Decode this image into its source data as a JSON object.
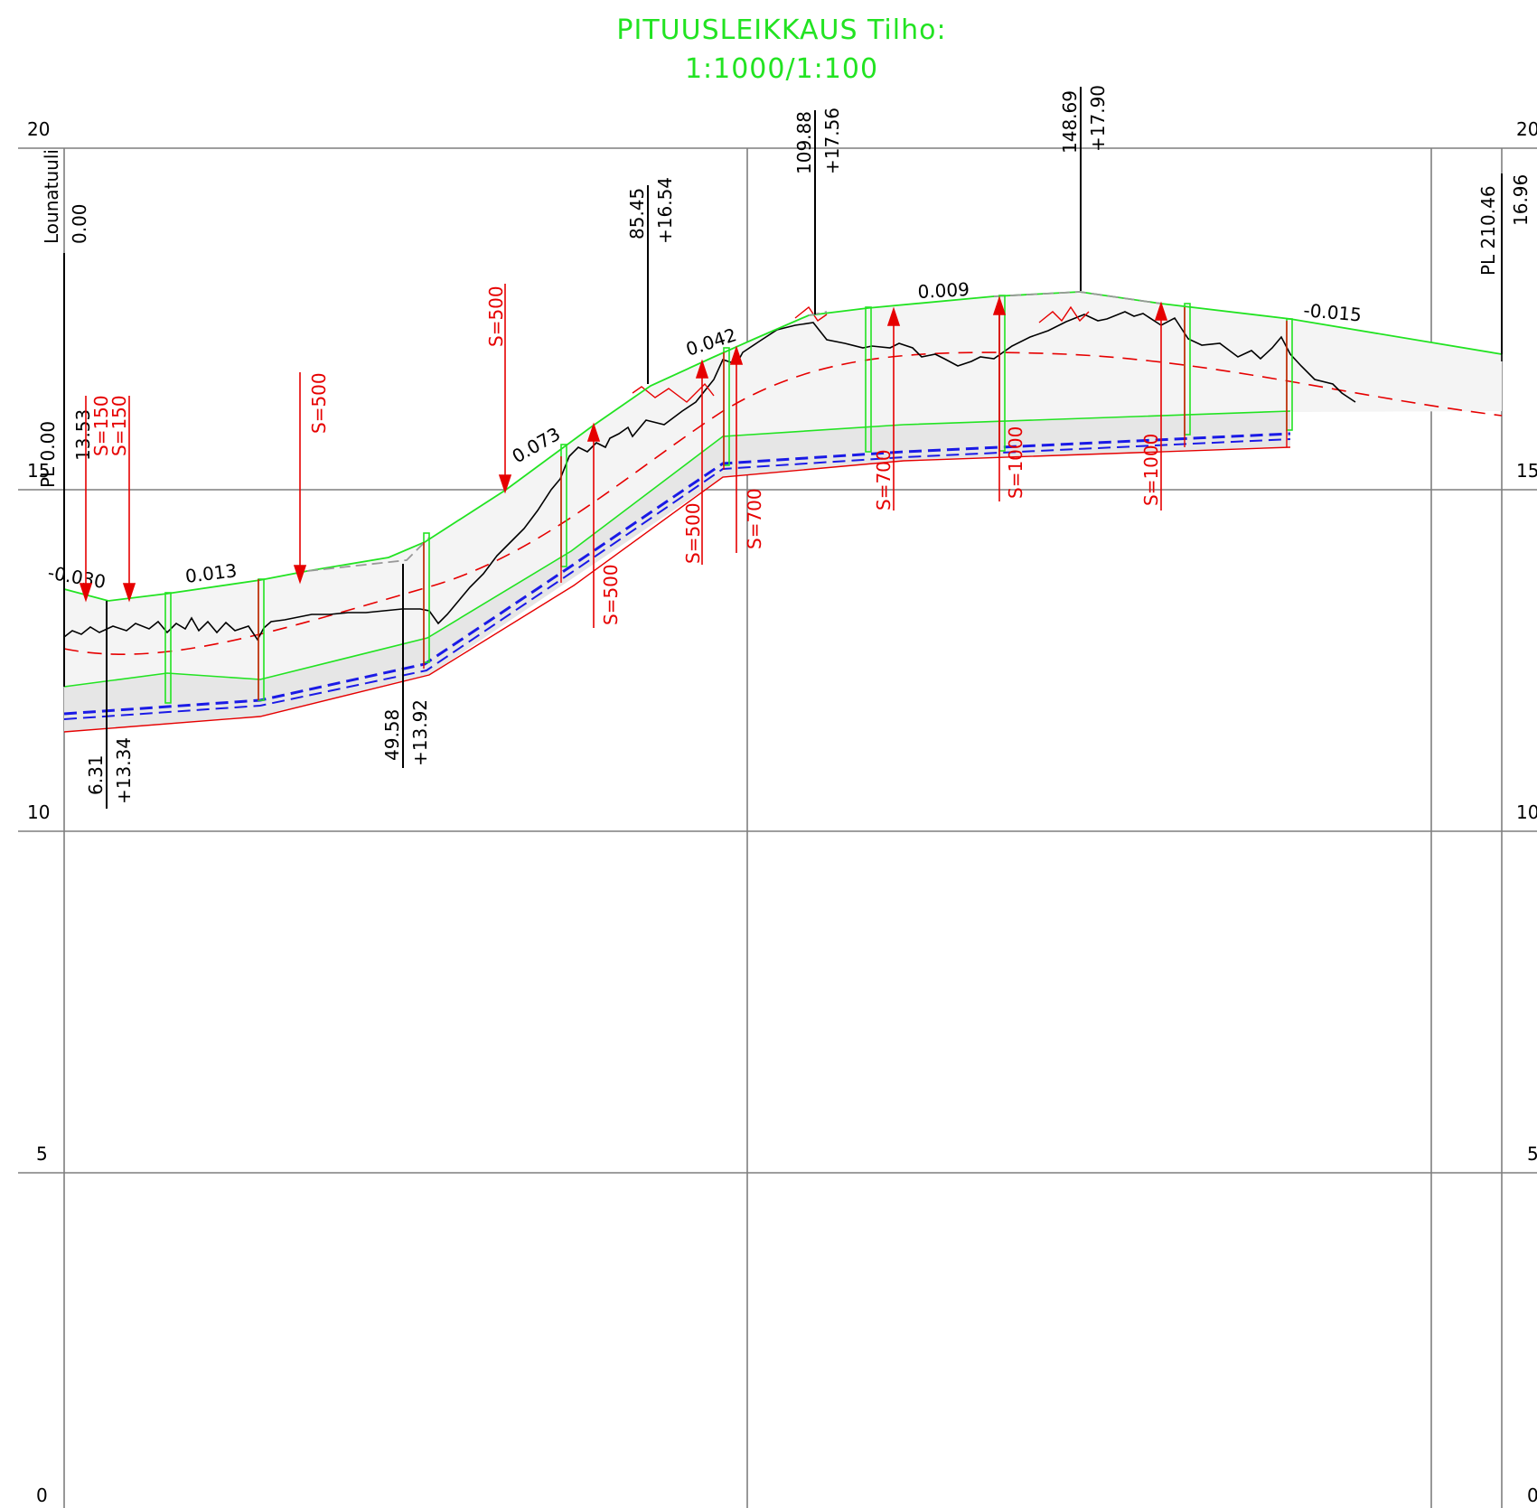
{
  "title": {
    "line1": "PITUUSLEIKKAUS Tilho:",
    "line2": "1:1000/1:100"
  },
  "colors": {
    "design": "#22e322",
    "ground": "#000000",
    "curve": "#e60000",
    "grid": "#7f7f7f",
    "drain": "#1a1ae6",
    "fill": "#e6e6e6"
  },
  "scale_left": [
    "20",
    "15",
    "10",
    "5",
    "0"
  ],
  "scale_right": [
    "20",
    "15",
    "10",
    "5",
    "0"
  ],
  "start_station": {
    "name": "Lounatuuli",
    "value": "0.00",
    "pl_label": "PL 0.00",
    "elev": "13.53"
  },
  "end_station": {
    "pl_label": "PL 210.46",
    "elev": "16.96"
  },
  "grades": [
    "-0.030",
    "0.013",
    "0.073",
    "0.042",
    "0.009",
    "-0.015"
  ],
  "vertical_points": [
    {
      "station": "6.31",
      "elev": "+13.34"
    },
    {
      "station": "49.58",
      "elev": "+13.92"
    },
    {
      "station": "85.45",
      "elev": "+16.54"
    },
    {
      "station": "109.88",
      "elev": "+17.56"
    },
    {
      "station": "148.69",
      "elev": "+17.90"
    }
  ],
  "curve_labels": [
    "S=150",
    "S=150",
    "S=500",
    "S=500",
    "S=500",
    "S=500",
    "S=700",
    "S=700",
    "S=1000",
    "S=1000"
  ]
}
